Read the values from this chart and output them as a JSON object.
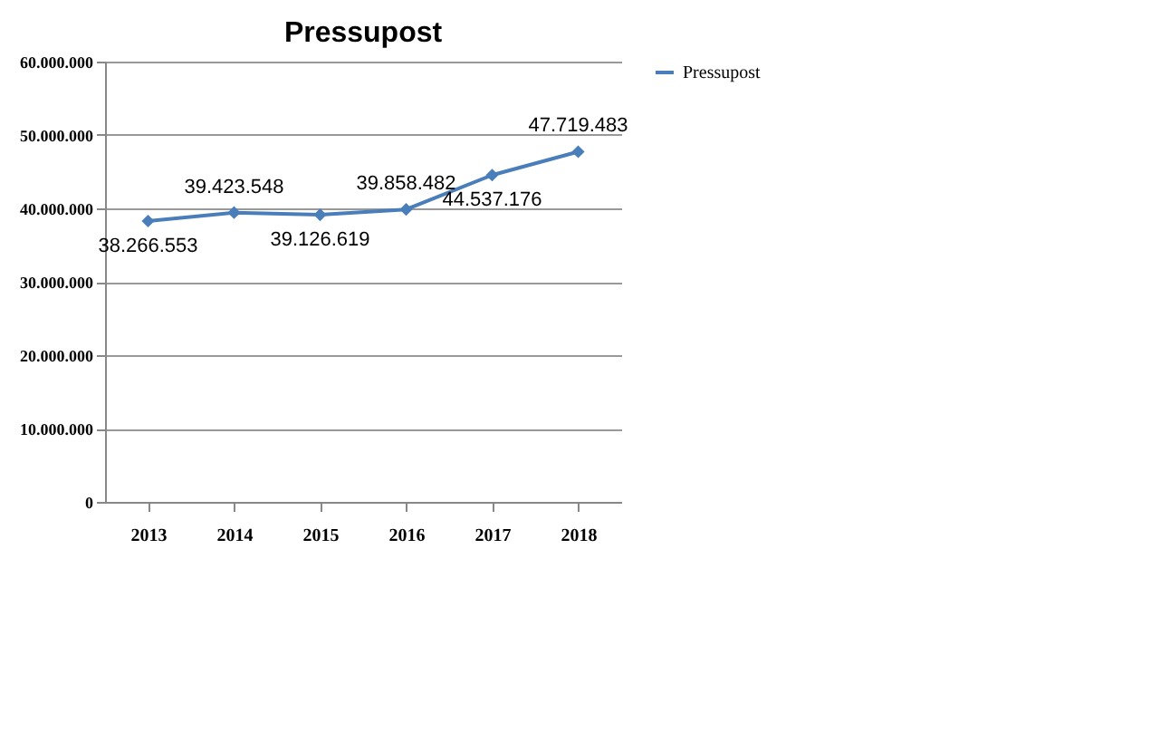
{
  "chart_data": {
    "type": "line",
    "title": "Pressupost",
    "categories": [
      "2013",
      "2014",
      "2015",
      "2016",
      "2017",
      "2018"
    ],
    "series": [
      {
        "name": "Pressupost",
        "color": "#4a7ebb",
        "values": [
          38266553,
          39423548,
          39126619,
          39858482,
          44537176,
          47719483
        ],
        "value_labels": [
          "38.266.553",
          "39.423.548",
          "39.126.619",
          "39.858.482",
          "44.537.176",
          "47.719.483"
        ]
      }
    ],
    "ylim": [
      0,
      60000000
    ],
    "yticks": [
      0,
      {
        "value": 10000000,
        "label": "10.000.000"
      },
      {
        "value": 20000000,
        "label": "20.000.000"
      },
      {
        "value": 30000000,
        "label": "30.000.000"
      },
      {
        "value": 40000000,
        "label": "40.000.000"
      },
      {
        "value": 50000000,
        "label": "50.000.000"
      },
      {
        "value": 60000000,
        "label": "60.000.000"
      }
    ],
    "grid": "y",
    "legend": "right",
    "marker": "diamond",
    "line_style": "solid"
  }
}
